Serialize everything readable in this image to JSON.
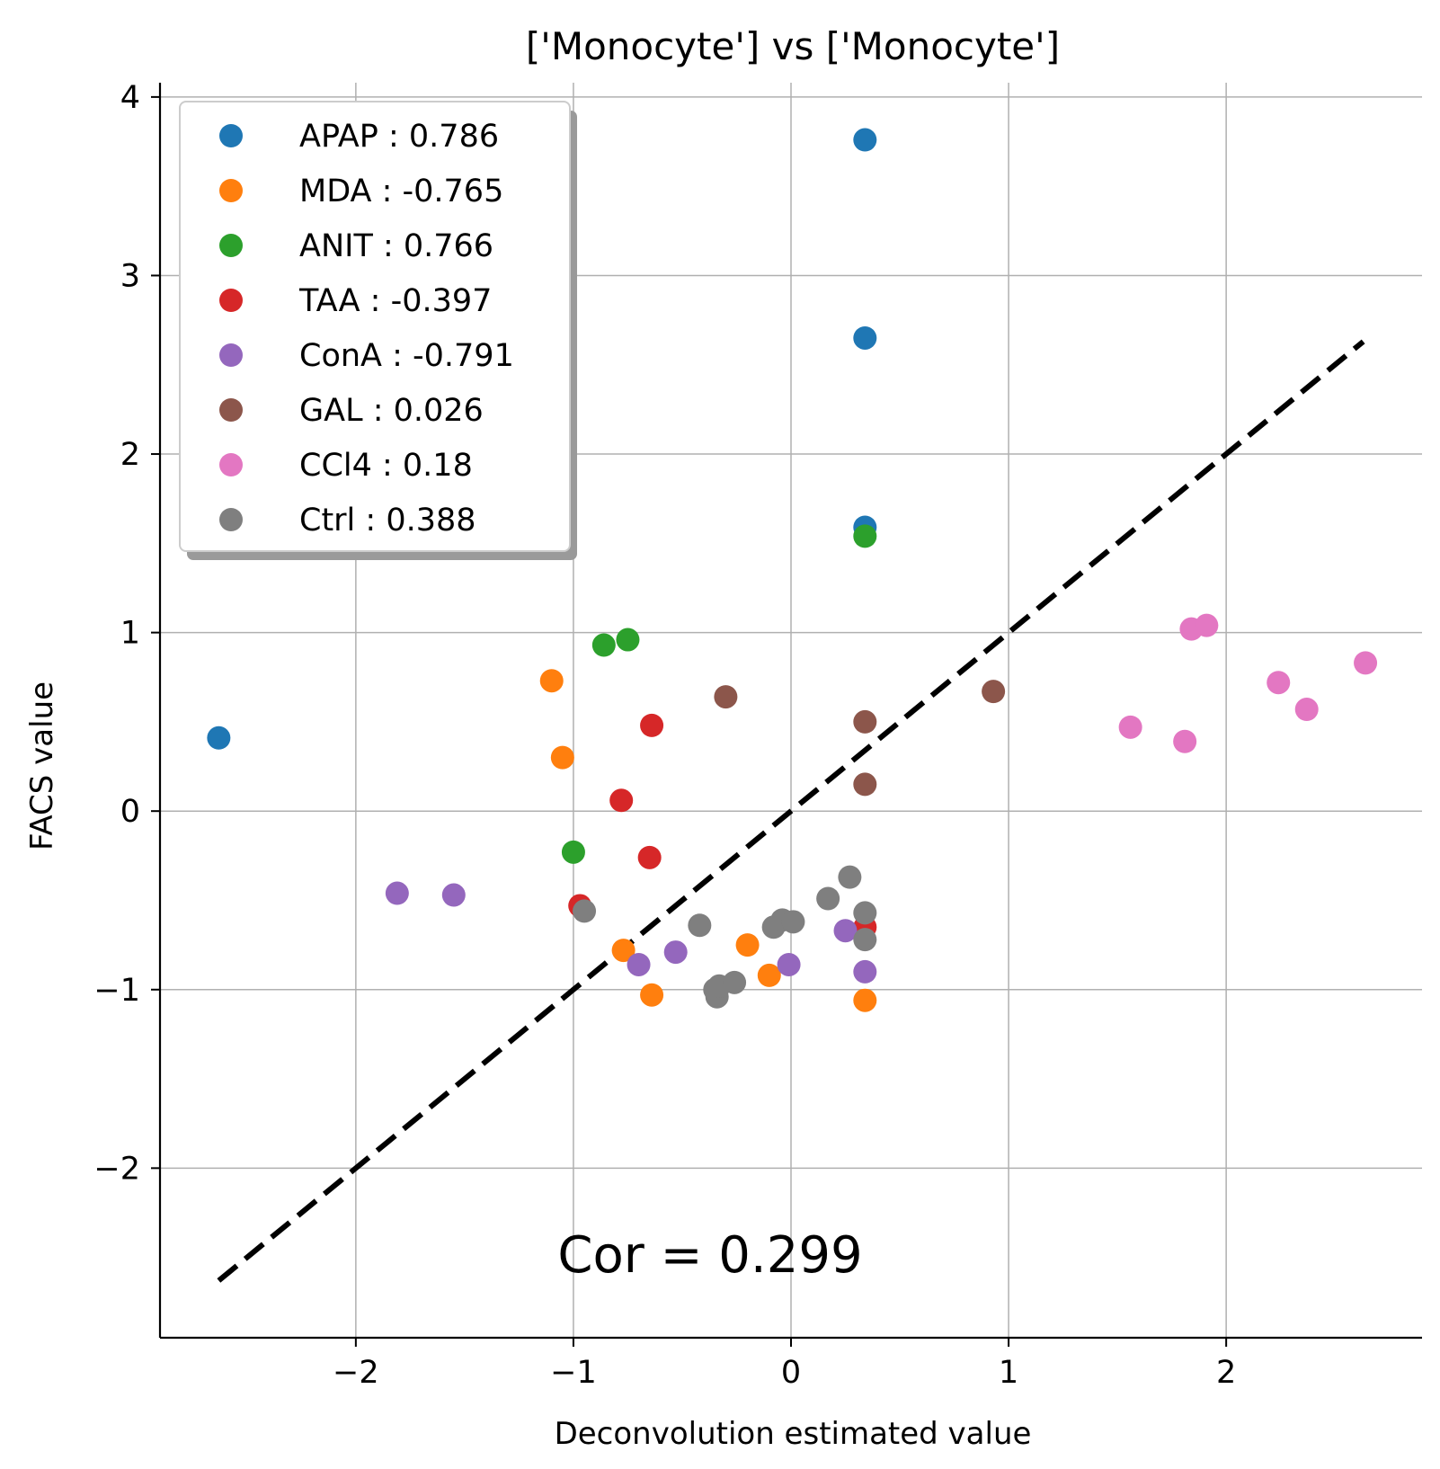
{
  "chart_data": {
    "type": "scatter",
    "title": "['Monocyte'] vs ['Monocyte']",
    "xlabel": "Deconvolution estimated value",
    "ylabel": "FACS value",
    "xlim": [
      -2.9,
      2.9
    ],
    "ylim": [
      -2.95,
      4.08
    ],
    "xticks": [
      {
        "value": -2,
        "label": "−2"
      },
      {
        "value": -1,
        "label": "−1"
      },
      {
        "value": 0,
        "label": "0"
      },
      {
        "value": 1,
        "label": "1"
      },
      {
        "value": 2,
        "label": "2"
      }
    ],
    "yticks": [
      {
        "value": -2,
        "label": "−2"
      },
      {
        "value": -1,
        "label": "−1"
      },
      {
        "value": 0,
        "label": "0"
      },
      {
        "value": 1,
        "label": "1"
      },
      {
        "value": 2,
        "label": "2"
      },
      {
        "value": 3,
        "label": "3"
      },
      {
        "value": 4,
        "label": "4"
      }
    ],
    "grid": true,
    "legend_position": "top-left",
    "reference_line": {
      "style": "dashed",
      "color": "#000000",
      "x": [
        -2.63,
        2.63
      ],
      "y": [
        -2.63,
        2.63
      ]
    },
    "annotation": "Cor = 0.299",
    "series": [
      {
        "name": "APAP : 0.786",
        "color": "#1f77b4",
        "points": [
          [
            0.34,
            3.76
          ],
          [
            0.34,
            2.65
          ],
          [
            0.34,
            1.59
          ],
          [
            -2.63,
            0.41
          ]
        ]
      },
      {
        "name": "MDA : -0.765",
        "color": "#ff7f0e",
        "points": [
          [
            -1.1,
            0.73
          ],
          [
            -1.05,
            0.3
          ],
          [
            -0.77,
            -0.78
          ],
          [
            -0.64,
            -1.03
          ],
          [
            -0.2,
            -0.75
          ],
          [
            -0.1,
            -0.92
          ],
          [
            0.34,
            -1.06
          ]
        ]
      },
      {
        "name": "ANIT : 0.766",
        "color": "#2ca02c",
        "points": [
          [
            0.34,
            1.54
          ],
          [
            -0.86,
            0.93
          ],
          [
            -0.75,
            0.96
          ],
          [
            -1.0,
            -0.23
          ]
        ]
      },
      {
        "name": "TAA : -0.397",
        "color": "#d62728",
        "points": [
          [
            -0.64,
            0.48
          ],
          [
            -0.78,
            0.06
          ],
          [
            -0.65,
            -0.26
          ],
          [
            -0.97,
            -0.53
          ],
          [
            0.34,
            -0.65
          ]
        ]
      },
      {
        "name": "ConA : -0.791",
        "color": "#9467bd",
        "points": [
          [
            -1.81,
            -0.46
          ],
          [
            -1.55,
            -0.47
          ],
          [
            -0.7,
            -0.86
          ],
          [
            -0.53,
            -0.79
          ],
          [
            -0.01,
            -0.86
          ],
          [
            0.25,
            -0.67
          ],
          [
            0.34,
            -0.9
          ]
        ]
      },
      {
        "name": "GAL : 0.026",
        "color": "#8c564b",
        "points": [
          [
            -0.3,
            0.64
          ],
          [
            0.34,
            0.5
          ],
          [
            0.34,
            0.15
          ],
          [
            0.93,
            0.67
          ]
        ]
      },
      {
        "name": "CCl4 : 0.18",
        "color": "#e377c2",
        "points": [
          [
            1.56,
            0.47
          ],
          [
            1.81,
            0.39
          ],
          [
            1.84,
            1.02
          ],
          [
            1.91,
            1.04
          ],
          [
            2.24,
            0.72
          ],
          [
            2.37,
            0.57
          ],
          [
            2.64,
            0.83
          ]
        ]
      },
      {
        "name": "Ctrl : 0.388",
        "color": "#7f7f7f",
        "points": [
          [
            -0.95,
            -0.56
          ],
          [
            -0.42,
            -0.64
          ],
          [
            -0.35,
            -1.0
          ],
          [
            -0.34,
            -1.04
          ],
          [
            -0.33,
            -0.98
          ],
          [
            -0.26,
            -0.96
          ],
          [
            -0.08,
            -0.65
          ],
          [
            -0.04,
            -0.61
          ],
          [
            0.01,
            -0.62
          ],
          [
            0.17,
            -0.49
          ],
          [
            0.27,
            -0.37
          ],
          [
            0.34,
            -0.57
          ],
          [
            0.34,
            -0.72
          ]
        ]
      }
    ]
  }
}
